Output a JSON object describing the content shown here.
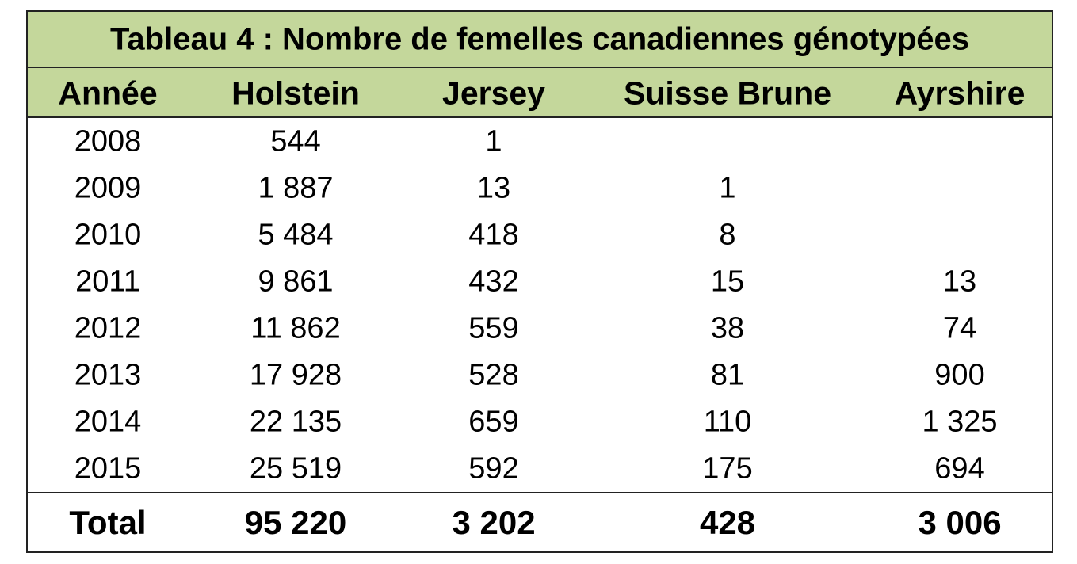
{
  "title": "Tableau 4 : Nombre de femelles canadiennes génotypées",
  "table": {
    "columns": [
      "Année",
      "Holstein",
      "Jersey",
      "Suisse Brune",
      "Ayrshire"
    ],
    "rows": [
      [
        "2008",
        "544",
        "1",
        null,
        null
      ],
      [
        "2009",
        "1 887",
        "13",
        "1",
        null
      ],
      [
        "2010",
        "5 484",
        "418",
        "8",
        null
      ],
      [
        "2011",
        "9 861",
        "432",
        "15",
        "13"
      ],
      [
        "2012",
        "11 862",
        "559",
        "38",
        "74"
      ],
      [
        "2013",
        "17 928",
        "528",
        "81",
        "900"
      ],
      [
        "2014",
        "22 135",
        "659",
        "110",
        "1 325"
      ],
      [
        "2015",
        "25 519",
        "592",
        "175",
        "694"
      ]
    ],
    "total": [
      "Total",
      "95 220",
      "3 202",
      "428",
      "3 006"
    ]
  }
}
